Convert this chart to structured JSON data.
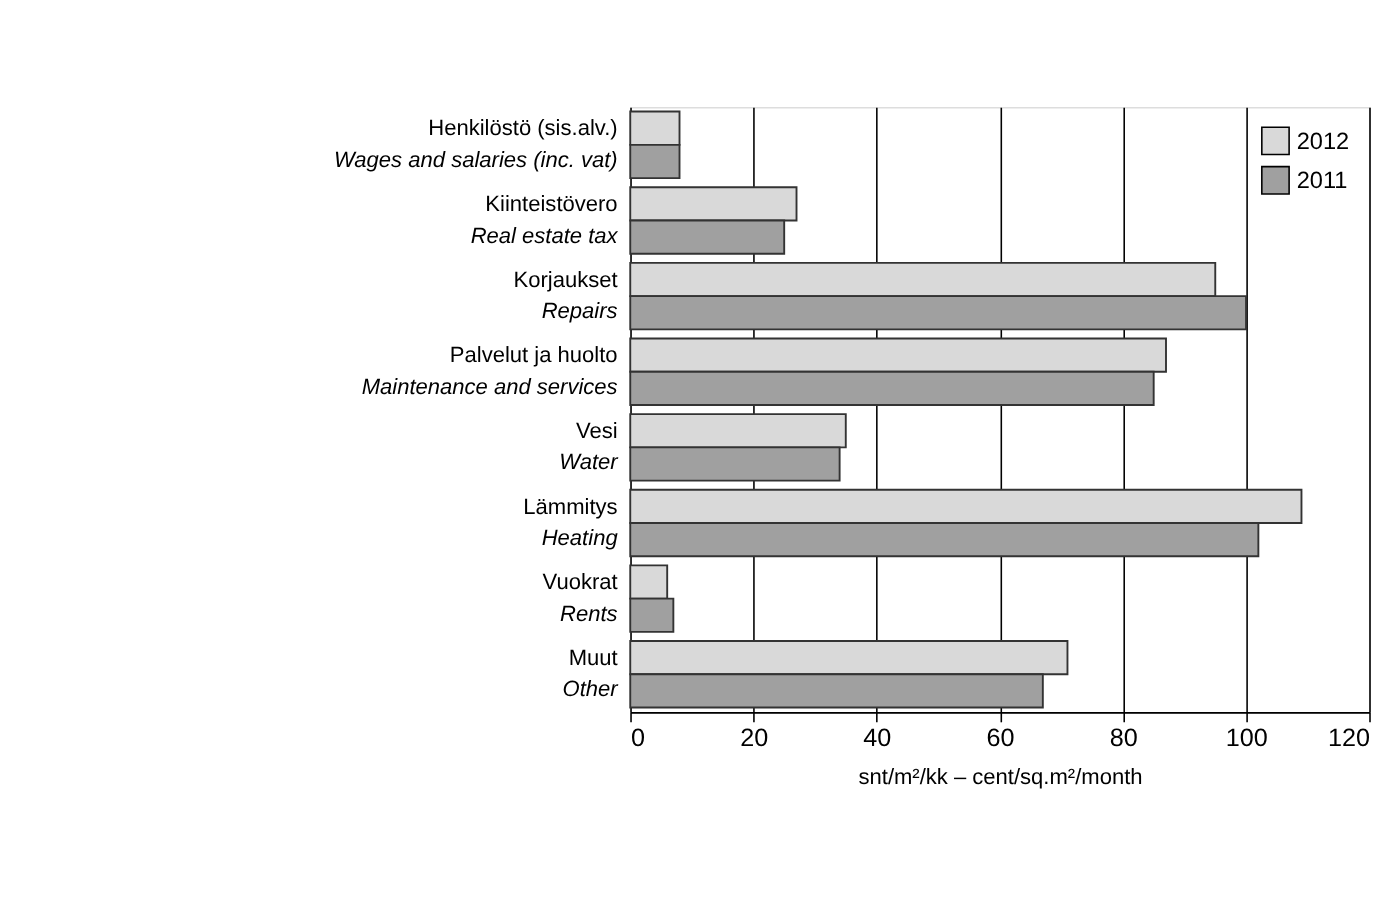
{
  "chart_data": {
    "type": "bar",
    "orientation": "horizontal",
    "xlabel": "snt/m²/kk – cent/sq.m²/month",
    "categories": [
      "Henkilöstö (sis.alv.)\nWages and salaries (inc. vat)",
      "Kiinteistövero\nReal estate tax",
      "Korjaukset\nRepairs",
      "Palvelut ja huolto\nMaintenance and services",
      "Vesi\nWater",
      "Lämmitys\nHeating",
      "Vuokrat\nRents",
      "Muut\nOther"
    ],
    "series": [
      {
        "name": "2012",
        "color": "#d9d9d9",
        "values": [
          8,
          27,
          95,
          87,
          35,
          109,
          6,
          71
        ]
      },
      {
        "name": "2011",
        "color": "#a0a0a0",
        "values": [
          8,
          25,
          100,
          85,
          34,
          102,
          7,
          67
        ]
      }
    ],
    "xlim": [
      0,
      120
    ],
    "xticks": [
      0,
      20,
      40,
      60,
      80,
      100,
      120
    ],
    "grid": "x",
    "legend": "top right"
  }
}
